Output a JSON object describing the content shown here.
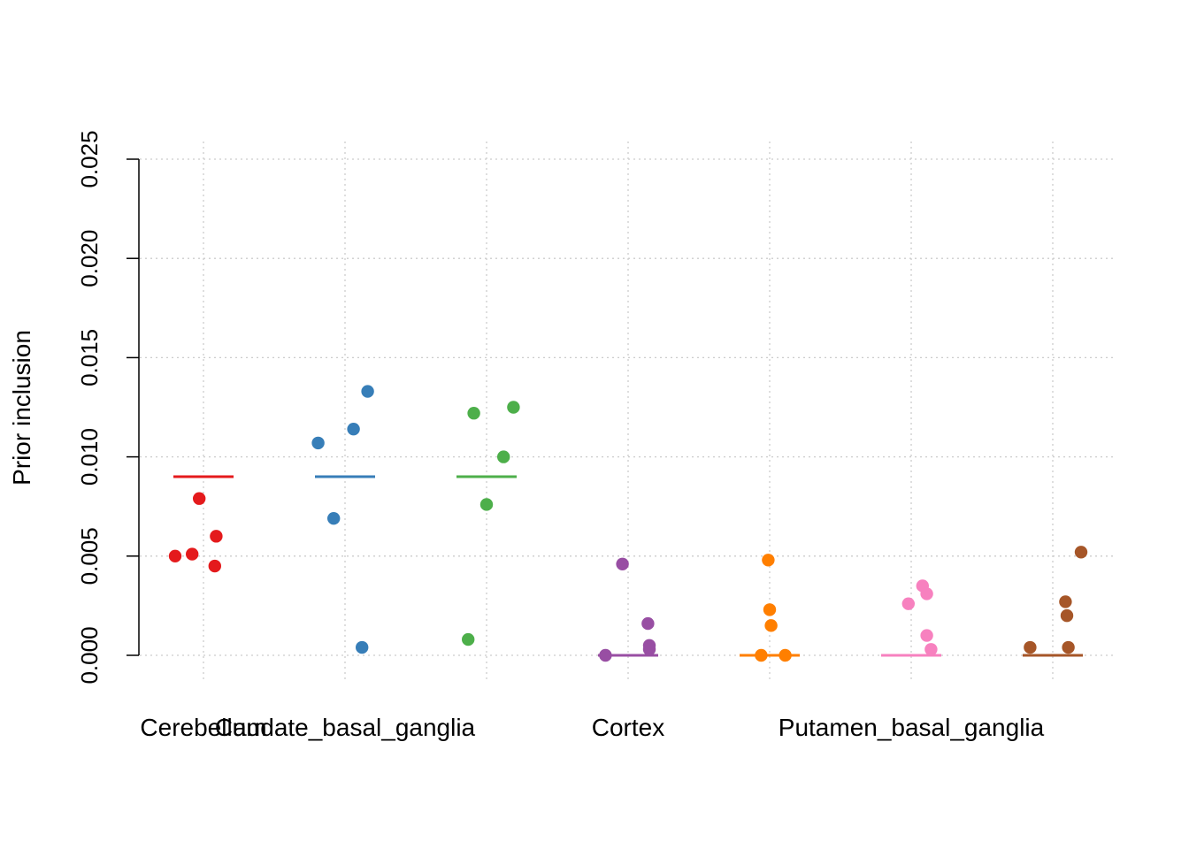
{
  "chart_data": {
    "type": "scatter",
    "title": "",
    "xlabel": "",
    "ylabel": "Prior inclusion",
    "ylim": [
      0,
      0.025
    ],
    "yticks": [
      "0.000",
      "0.005",
      "0.010",
      "0.015",
      "0.020",
      "0.025"
    ],
    "grid": true,
    "legend": "none",
    "categories": [
      "Cerebellum",
      "Caudate_basal_ganglia",
      "",
      "Cortex",
      "",
      "Putamen_basal_ganglia",
      ""
    ],
    "series": [
      {
        "color": "#E41A1C",
        "median": 0.009,
        "points": [
          {
            "jitter": -0.2,
            "y": 0.005
          },
          {
            "jitter": -0.08,
            "y": 0.0051
          },
          {
            "jitter": -0.03,
            "y": 0.0079
          },
          {
            "jitter": 0.09,
            "y": 0.006
          },
          {
            "jitter": 0.08,
            "y": 0.0045
          }
        ]
      },
      {
        "color": "#377EB8",
        "median": 0.009,
        "points": [
          {
            "jitter": -0.19,
            "y": 0.0107
          },
          {
            "jitter": -0.08,
            "y": 0.0069
          },
          {
            "jitter": 0.06,
            "y": 0.0114
          },
          {
            "jitter": 0.16,
            "y": 0.0133
          },
          {
            "jitter": 0.12,
            "y": 0.0004
          }
        ]
      },
      {
        "color": "#4DAF4A",
        "median": 0.009,
        "points": [
          {
            "jitter": -0.09,
            "y": 0.0122
          },
          {
            "jitter": 0.19,
            "y": 0.0125
          },
          {
            "jitter": 0.12,
            "y": 0.01
          },
          {
            "jitter": 0.0,
            "y": 0.0076
          },
          {
            "jitter": -0.13,
            "y": 0.0008
          }
        ]
      },
      {
        "color": "#984EA3",
        "median": 0.0,
        "points": [
          {
            "jitter": -0.04,
            "y": 0.0046
          },
          {
            "jitter": 0.14,
            "y": 0.0016
          },
          {
            "jitter": 0.15,
            "y": 0.0005
          },
          {
            "jitter": 0.15,
            "y": 0.0003
          },
          {
            "jitter": -0.16,
            "y": 0.0
          }
        ]
      },
      {
        "color": "#FF7F00",
        "median": 0.0,
        "points": [
          {
            "jitter": -0.01,
            "y": 0.0048
          },
          {
            "jitter": 0.0,
            "y": 0.0023
          },
          {
            "jitter": 0.01,
            "y": 0.0015
          },
          {
            "jitter": -0.06,
            "y": 0.0
          },
          {
            "jitter": 0.11,
            "y": 0.0
          }
        ]
      },
      {
        "color": "#F781BF",
        "median": 0.0,
        "points": [
          {
            "jitter": 0.08,
            "y": 0.0035
          },
          {
            "jitter": 0.11,
            "y": 0.0031
          },
          {
            "jitter": -0.02,
            "y": 0.0026
          },
          {
            "jitter": 0.11,
            "y": 0.001
          },
          {
            "jitter": 0.14,
            "y": 0.0003
          }
        ]
      },
      {
        "color": "#A65628",
        "median": 0.0,
        "points": [
          {
            "jitter": 0.2,
            "y": 0.0052
          },
          {
            "jitter": 0.09,
            "y": 0.0027
          },
          {
            "jitter": 0.1,
            "y": 0.002
          },
          {
            "jitter": -0.16,
            "y": 0.0004
          },
          {
            "jitter": 0.11,
            "y": 0.0004
          }
        ]
      }
    ]
  }
}
